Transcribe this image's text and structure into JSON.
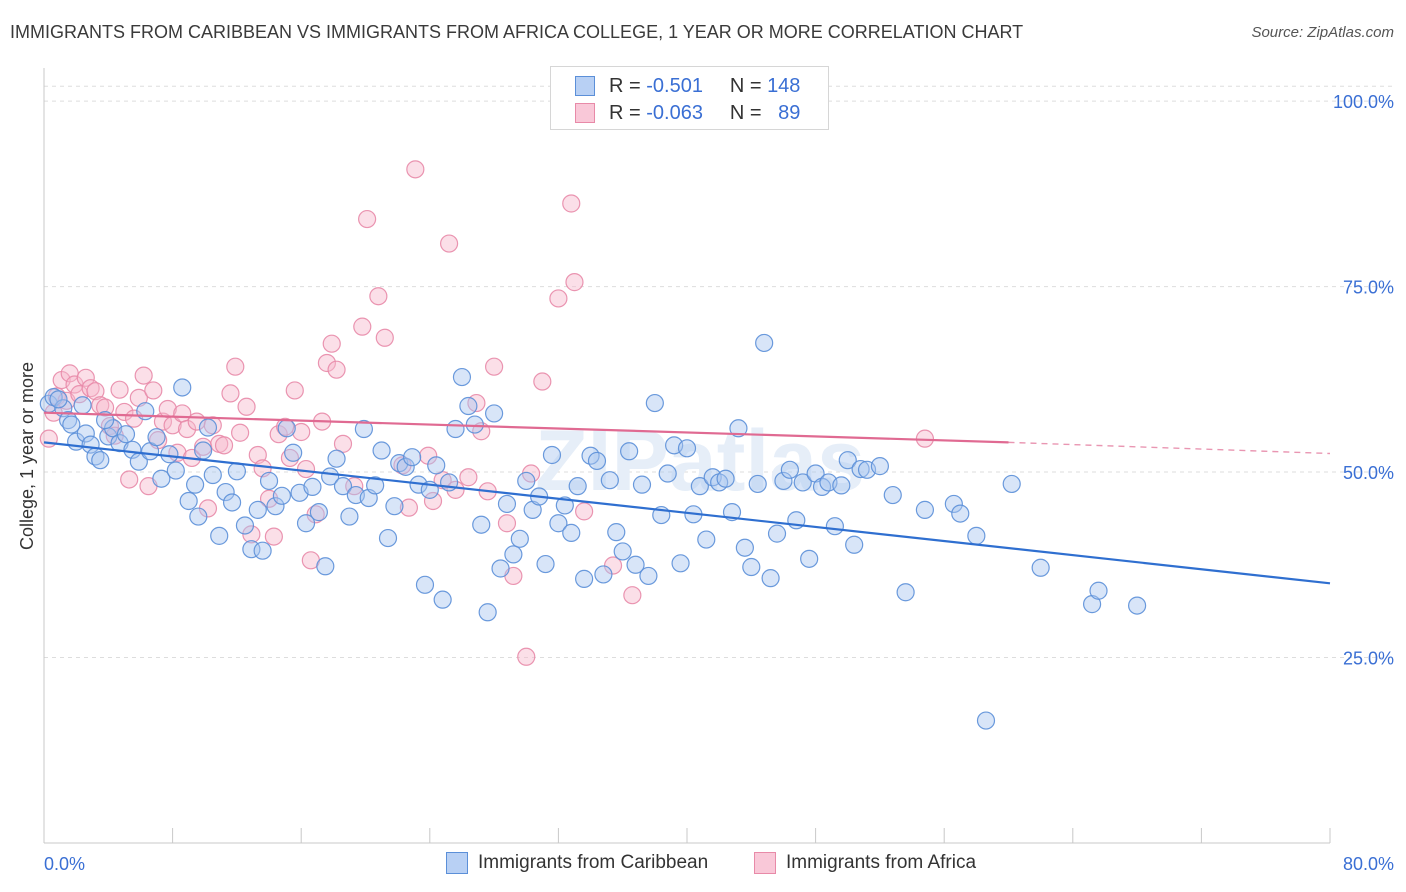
{
  "header": {
    "title": "IMMIGRANTS FROM CARIBBEAN VS IMMIGRANTS FROM AFRICA COLLEGE, 1 YEAR OR MORE CORRELATION CHART",
    "source": "Source: ZipAtlas.com"
  },
  "legend": {
    "rows": [
      {
        "r_label": "R =",
        "r_value": "-0.501",
        "n_label": "N =",
        "n_value": "148"
      },
      {
        "r_label": "R =",
        "r_value": "-0.063",
        "n_label": "N =",
        "n_value": "89"
      }
    ]
  },
  "watermark": "ZIPatlas",
  "colors": {
    "caribbean_fill": "#a9c6f0",
    "caribbean_stroke": "#5b8fd8",
    "caribbean_line": "#2f6fd0",
    "africa_fill": "#f6b8cc",
    "africa_stroke": "#e88aa8",
    "africa_line": "#e06a92",
    "tick_label": "#3a6fd4",
    "grid": "#dddddd"
  },
  "chart_data": {
    "type": "scatter",
    "title": "IMMIGRANTS FROM CARIBBEAN VS IMMIGRANTS FROM AFRICA COLLEGE, 1 YEAR OR MORE CORRELATION CHART",
    "xlabel": "",
    "ylabel": "College, 1 year or more",
    "xlim": [
      0,
      80
    ],
    "ylim": [
      0,
      105
    ],
    "x_tick_labels": [
      {
        "value": 0,
        "label": "0.0%"
      },
      {
        "value": 80,
        "label": "80.0%"
      }
    ],
    "y_tick_labels": [
      {
        "value": 25,
        "label": "25.0%"
      },
      {
        "value": 50,
        "label": "50.0%"
      },
      {
        "value": 75,
        "label": "75.0%"
      },
      {
        "value": 100,
        "label": "100.0%"
      }
    ],
    "series": [
      {
        "name": "Immigrants from Caribbean",
        "r": -0.501,
        "n": 148,
        "trend": {
          "x": [
            0,
            80
          ],
          "y": [
            54.0,
            35.0
          ]
        },
        "points": [
          [
            0.3,
            59.2
          ],
          [
            0.6,
            60.1
          ],
          [
            1.2,
            58.6
          ],
          [
            0.9,
            59.8
          ],
          [
            1.5,
            57.0
          ],
          [
            2.0,
            54.1
          ],
          [
            1.7,
            56.4
          ],
          [
            2.6,
            55.2
          ],
          [
            2.9,
            53.7
          ],
          [
            3.2,
            52.1
          ],
          [
            3.5,
            51.6
          ],
          [
            4.0,
            54.8
          ],
          [
            4.3,
            55.9
          ],
          [
            4.7,
            53.9
          ],
          [
            5.1,
            55.1
          ],
          [
            5.5,
            53.0
          ],
          [
            5.9,
            51.4
          ],
          [
            6.3,
            58.2
          ],
          [
            6.6,
            52.8
          ],
          [
            7.0,
            54.7
          ],
          [
            7.3,
            49.1
          ],
          [
            7.8,
            52.4
          ],
          [
            8.2,
            50.2
          ],
          [
            8.6,
            61.4
          ],
          [
            9.0,
            46.1
          ],
          [
            9.4,
            48.3
          ],
          [
            9.9,
            52.9
          ],
          [
            10.2,
            56.0
          ],
          [
            10.5,
            49.6
          ],
          [
            10.9,
            41.4
          ],
          [
            11.3,
            47.3
          ],
          [
            11.7,
            45.9
          ],
          [
            12.0,
            50.1
          ],
          [
            12.5,
            42.8
          ],
          [
            12.9,
            39.6
          ],
          [
            13.3,
            44.9
          ],
          [
            13.6,
            39.4
          ],
          [
            14.0,
            48.8
          ],
          [
            14.4,
            45.4
          ],
          [
            14.8,
            46.8
          ],
          [
            15.1,
            55.9
          ],
          [
            15.5,
            52.6
          ],
          [
            15.9,
            47.2
          ],
          [
            16.3,
            43.1
          ],
          [
            16.7,
            48.0
          ],
          [
            17.1,
            44.6
          ],
          [
            17.5,
            37.3
          ],
          [
            17.8,
            49.4
          ],
          [
            18.2,
            51.8
          ],
          [
            18.6,
            48.1
          ],
          [
            19.0,
            44.0
          ],
          [
            19.4,
            46.9
          ],
          [
            19.9,
            55.8
          ],
          [
            20.2,
            46.5
          ],
          [
            20.6,
            48.2
          ],
          [
            21.0,
            52.9
          ],
          [
            21.4,
            41.1
          ],
          [
            21.8,
            45.4
          ],
          [
            22.1,
            51.2
          ],
          [
            22.5,
            50.7
          ],
          [
            22.9,
            52.0
          ],
          [
            23.3,
            48.3
          ],
          [
            23.7,
            34.8
          ],
          [
            24.0,
            47.6
          ],
          [
            24.4,
            50.9
          ],
          [
            24.8,
            32.8
          ],
          [
            25.2,
            48.6
          ],
          [
            25.6,
            55.8
          ],
          [
            26.0,
            62.8
          ],
          [
            26.4,
            58.9
          ],
          [
            26.8,
            56.4
          ],
          [
            27.2,
            42.9
          ],
          [
            27.6,
            31.1
          ],
          [
            28.0,
            57.9
          ],
          [
            28.4,
            37.0
          ],
          [
            28.8,
            45.7
          ],
          [
            29.2,
            38.9
          ],
          [
            29.6,
            41.0
          ],
          [
            30.0,
            48.8
          ],
          [
            30.4,
            44.9
          ],
          [
            30.8,
            46.7
          ],
          [
            31.2,
            37.6
          ],
          [
            31.6,
            52.3
          ],
          [
            32.0,
            43.1
          ],
          [
            32.4,
            45.5
          ],
          [
            32.8,
            41.8
          ],
          [
            33.2,
            48.1
          ],
          [
            33.6,
            35.6
          ],
          [
            34.0,
            52.2
          ],
          [
            34.4,
            51.5
          ],
          [
            34.8,
            36.2
          ],
          [
            35.2,
            48.9
          ],
          [
            35.6,
            41.9
          ],
          [
            36.0,
            39.3
          ],
          [
            36.4,
            52.8
          ],
          [
            36.8,
            37.5
          ],
          [
            37.2,
            48.3
          ],
          [
            37.6,
            36.0
          ],
          [
            38.0,
            59.3
          ],
          [
            38.4,
            44.2
          ],
          [
            38.8,
            49.8
          ],
          [
            39.2,
            53.6
          ],
          [
            39.6,
            37.7
          ],
          [
            40.0,
            53.2
          ],
          [
            40.4,
            44.3
          ],
          [
            40.8,
            48.1
          ],
          [
            41.2,
            40.9
          ],
          [
            41.6,
            49.3
          ],
          [
            42.0,
            48.6
          ],
          [
            42.4,
            49.1
          ],
          [
            42.8,
            44.6
          ],
          [
            43.2,
            55.9
          ],
          [
            43.6,
            39.8
          ],
          [
            44.0,
            37.2
          ],
          [
            44.4,
            48.4
          ],
          [
            44.8,
            67.4
          ],
          [
            45.2,
            35.7
          ],
          [
            45.6,
            41.7
          ],
          [
            46.0,
            48.8
          ],
          [
            46.4,
            50.3
          ],
          [
            46.8,
            43.5
          ],
          [
            47.2,
            48.6
          ],
          [
            47.6,
            38.3
          ],
          [
            48.0,
            49.8
          ],
          [
            48.4,
            48.0
          ],
          [
            48.8,
            48.6
          ],
          [
            49.2,
            42.7
          ],
          [
            49.6,
            48.2
          ],
          [
            50.0,
            51.6
          ],
          [
            50.4,
            40.2
          ],
          [
            50.8,
            50.4
          ],
          [
            51.2,
            50.3
          ],
          [
            52.0,
            50.8
          ],
          [
            52.8,
            46.9
          ],
          [
            53.6,
            33.8
          ],
          [
            54.8,
            44.9
          ],
          [
            56.6,
            45.7
          ],
          [
            57.0,
            44.4
          ],
          [
            58.0,
            41.4
          ],
          [
            58.6,
            16.5
          ],
          [
            60.2,
            48.4
          ],
          [
            62.0,
            37.1
          ],
          [
            65.2,
            32.2
          ],
          [
            65.6,
            34.0
          ],
          [
            68.0,
            32.0
          ],
          [
            2.4,
            59.0
          ],
          [
            3.8,
            57.0
          ],
          [
            9.6,
            44.0
          ]
        ]
      },
      {
        "name": "Immigrants from Africa",
        "r": -0.063,
        "n": 89,
        "trend": {
          "x": [
            0,
            60
          ],
          "y": [
            58.0,
            54.0
          ],
          "dashed_to": [
            80,
            52.5
          ]
        },
        "points": [
          [
            0.3,
            54.5
          ],
          [
            0.8,
            60.2
          ],
          [
            1.1,
            62.4
          ],
          [
            1.4,
            59.6
          ],
          [
            1.6,
            63.3
          ],
          [
            1.9,
            61.8
          ],
          [
            2.2,
            60.5
          ],
          [
            2.6,
            62.7
          ],
          [
            2.9,
            61.3
          ],
          [
            3.2,
            60.9
          ],
          [
            3.5,
            59.0
          ],
          [
            3.8,
            58.7
          ],
          [
            4.1,
            56.2
          ],
          [
            4.4,
            54.9
          ],
          [
            4.7,
            61.1
          ],
          [
            5.0,
            58.1
          ],
          [
            5.3,
            49.0
          ],
          [
            5.6,
            57.2
          ],
          [
            5.9,
            60.0
          ],
          [
            6.2,
            63.0
          ],
          [
            6.5,
            48.1
          ],
          [
            6.8,
            61.0
          ],
          [
            7.1,
            54.3
          ],
          [
            7.4,
            56.8
          ],
          [
            7.7,
            58.5
          ],
          [
            8.0,
            56.3
          ],
          [
            8.3,
            52.6
          ],
          [
            8.6,
            57.9
          ],
          [
            8.9,
            55.8
          ],
          [
            9.2,
            51.9
          ],
          [
            9.5,
            56.8
          ],
          [
            9.9,
            53.4
          ],
          [
            10.2,
            45.1
          ],
          [
            10.5,
            56.3
          ],
          [
            10.9,
            53.8
          ],
          [
            11.2,
            53.6
          ],
          [
            11.6,
            60.6
          ],
          [
            11.9,
            64.2
          ],
          [
            12.2,
            55.3
          ],
          [
            12.6,
            58.8
          ],
          [
            12.9,
            41.6
          ],
          [
            13.3,
            52.3
          ],
          [
            13.6,
            50.5
          ],
          [
            14.0,
            46.4
          ],
          [
            14.3,
            41.3
          ],
          [
            14.6,
            55.1
          ],
          [
            15.0,
            56.1
          ],
          [
            15.3,
            51.9
          ],
          [
            15.6,
            61.0
          ],
          [
            16.0,
            55.4
          ],
          [
            16.3,
            50.4
          ],
          [
            16.6,
            38.1
          ],
          [
            16.9,
            44.3
          ],
          [
            17.3,
            56.8
          ],
          [
            17.6,
            64.7
          ],
          [
            17.9,
            67.3
          ],
          [
            18.2,
            63.8
          ],
          [
            18.6,
            53.8
          ],
          [
            19.3,
            48.1
          ],
          [
            19.8,
            69.6
          ],
          [
            20.1,
            84.1
          ],
          [
            20.8,
            73.7
          ],
          [
            21.2,
            68.1
          ],
          [
            22.3,
            50.9
          ],
          [
            22.7,
            45.2
          ],
          [
            23.1,
            90.8
          ],
          [
            23.9,
            52.2
          ],
          [
            24.2,
            46.1
          ],
          [
            24.8,
            48.9
          ],
          [
            25.2,
            80.8
          ],
          [
            25.6,
            47.6
          ],
          [
            26.4,
            49.3
          ],
          [
            26.9,
            59.3
          ],
          [
            27.2,
            55.5
          ],
          [
            27.6,
            47.4
          ],
          [
            28.0,
            64.2
          ],
          [
            28.8,
            43.1
          ],
          [
            29.2,
            36.0
          ],
          [
            30.0,
            25.1
          ],
          [
            30.3,
            49.8
          ],
          [
            31.0,
            62.2
          ],
          [
            32.0,
            73.4
          ],
          [
            32.8,
            86.2
          ],
          [
            33.0,
            75.6
          ],
          [
            33.6,
            44.7
          ],
          [
            35.4,
            37.4
          ],
          [
            36.6,
            33.4
          ],
          [
            54.8,
            54.5
          ],
          [
            0.6,
            58.0
          ]
        ]
      }
    ]
  },
  "bottom_legend": {
    "items": [
      "Immigrants from Caribbean",
      "Immigrants from Africa"
    ]
  }
}
